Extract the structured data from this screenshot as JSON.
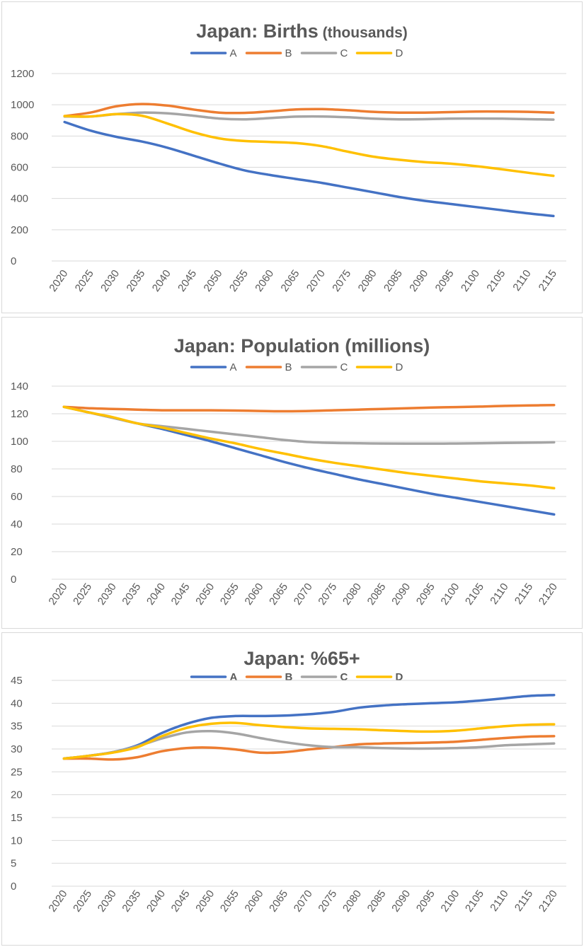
{
  "chart_data": [
    {
      "type": "line",
      "title": "Japan: Births",
      "title_suffix": " (thousands)",
      "legend_position": "top-center",
      "legend_bold": false,
      "x": [
        "2020",
        "2025",
        "2030",
        "2035",
        "2040",
        "2045",
        "2050",
        "2055",
        "2060",
        "2065",
        "2070",
        "2075",
        "2080",
        "2085",
        "2090",
        "2095",
        "2100",
        "2105",
        "2110",
        "2115"
      ],
      "yticks": [
        "0",
        "200",
        "400",
        "600",
        "800",
        "1000",
        "1200"
      ],
      "ylim": [
        0,
        1200
      ],
      "grid": true,
      "series": [
        {
          "name": "A",
          "color": "#4472c4",
          "values": [
            890,
            835,
            795,
            765,
            725,
            675,
            625,
            580,
            550,
            525,
            500,
            470,
            440,
            410,
            385,
            365,
            345,
            325,
            305,
            288
          ]
        },
        {
          "name": "B",
          "color": "#ed7d31",
          "values": [
            928,
            950,
            990,
            1005,
            995,
            970,
            950,
            948,
            958,
            970,
            972,
            965,
            955,
            950,
            950,
            953,
            957,
            957,
            955,
            950
          ]
        },
        {
          "name": "C",
          "color": "#a5a5a5",
          "values": [
            925,
            925,
            940,
            950,
            945,
            930,
            912,
            907,
            915,
            924,
            925,
            920,
            911,
            907,
            908,
            911,
            912,
            911,
            908,
            905
          ]
        },
        {
          "name": "D",
          "color": "#ffc000",
          "values": [
            928,
            925,
            940,
            930,
            880,
            825,
            785,
            768,
            762,
            755,
            735,
            700,
            668,
            648,
            633,
            623,
            607,
            587,
            565,
            545
          ]
        }
      ]
    },
    {
      "type": "line",
      "title": "Japan: Population (millions)",
      "title_suffix": "",
      "legend_position": "top-center",
      "legend_bold": false,
      "x": [
        "2020",
        "2025",
        "2030",
        "2035",
        "2040",
        "2045",
        "2050",
        "2055",
        "2060",
        "2065",
        "2070",
        "2075",
        "2080",
        "2085",
        "2090",
        "2095",
        "2100",
        "2105",
        "2110",
        "2115",
        "2120"
      ],
      "yticks": [
        "0",
        "20",
        "40",
        "60",
        "80",
        "100",
        "120",
        "140"
      ],
      "ylim": [
        0,
        140
      ],
      "grid": true,
      "series": [
        {
          "name": "A",
          "color": "#4472c4",
          "values": [
            125,
            121,
            117,
            113,
            109,
            104.5,
            100,
            95,
            90,
            85,
            80.5,
            76.5,
            72.5,
            69,
            65.5,
            62,
            59,
            56,
            53,
            50,
            47
          ]
        },
        {
          "name": "B",
          "color": "#ed7d31",
          "values": [
            125,
            124,
            123.5,
            123,
            122.5,
            122.5,
            122.5,
            122.3,
            122,
            121.8,
            122,
            122.5,
            123,
            123.5,
            124,
            124.5,
            124.8,
            125.2,
            125.7,
            126,
            126.3
          ]
        },
        {
          "name": "C",
          "color": "#a5a5a5",
          "values": [
            125,
            121,
            117,
            113,
            111,
            109,
            107,
            105,
            103,
            101,
            99.5,
            98.8,
            98.6,
            98.4,
            98.3,
            98.3,
            98.4,
            98.6,
            98.8,
            99,
            99.3
          ]
        },
        {
          "name": "D",
          "color": "#ffc000",
          "values": [
            125,
            121,
            117.5,
            113,
            110,
            106,
            102,
            98.5,
            94.5,
            91,
            87.5,
            84.5,
            82,
            79.5,
            77,
            75,
            73,
            71,
            69.5,
            68,
            66
          ]
        }
      ]
    },
    {
      "type": "line",
      "title": "Japan: %65+",
      "title_suffix": "",
      "legend_position": "top-center",
      "legend_bold": true,
      "x": [
        "2020",
        "2025",
        "2030",
        "2035",
        "2040",
        "2045",
        "2050",
        "2055",
        "2060",
        "2065",
        "2070",
        "2075",
        "2080",
        "2085",
        "2090",
        "2095",
        "2100",
        "2105",
        "2110",
        "2115",
        "2120"
      ],
      "yticks": [
        "0",
        "5",
        "10",
        "15",
        "20",
        "25",
        "30",
        "35",
        "40",
        "45"
      ],
      "ylim": [
        0,
        45
      ],
      "grid": true,
      "series": [
        {
          "name": "A",
          "color": "#4472c4",
          "values": [
            27.9,
            28.5,
            29.3,
            30.8,
            33.5,
            35.5,
            36.8,
            37.2,
            37.2,
            37.3,
            37.6,
            38.1,
            39,
            39.5,
            39.8,
            40,
            40.2,
            40.6,
            41.1,
            41.6,
            41.8
          ]
        },
        {
          "name": "B",
          "color": "#ed7d31",
          "values": [
            27.9,
            27.9,
            27.7,
            28.2,
            29.5,
            30.2,
            30.3,
            29.9,
            29.2,
            29.3,
            29.9,
            30.4,
            31,
            31.2,
            31.3,
            31.4,
            31.6,
            32,
            32.4,
            32.7,
            32.8
          ]
        },
        {
          "name": "C",
          "color": "#a5a5a5",
          "values": [
            27.9,
            28.5,
            29.3,
            30.6,
            32.3,
            33.6,
            33.9,
            33.4,
            32.4,
            31.5,
            30.8,
            30.4,
            30.4,
            30.2,
            30.1,
            30.1,
            30.2,
            30.4,
            30.8,
            31,
            31.2
          ]
        },
        {
          "name": "D",
          "color": "#ffc000",
          "values": [
            27.9,
            28.5,
            29.2,
            30.4,
            32.8,
            34.6,
            35.5,
            35.7,
            35.2,
            34.8,
            34.5,
            34.4,
            34.3,
            34.1,
            33.9,
            33.8,
            34,
            34.5,
            35,
            35.3,
            35.4
          ]
        }
      ]
    }
  ]
}
